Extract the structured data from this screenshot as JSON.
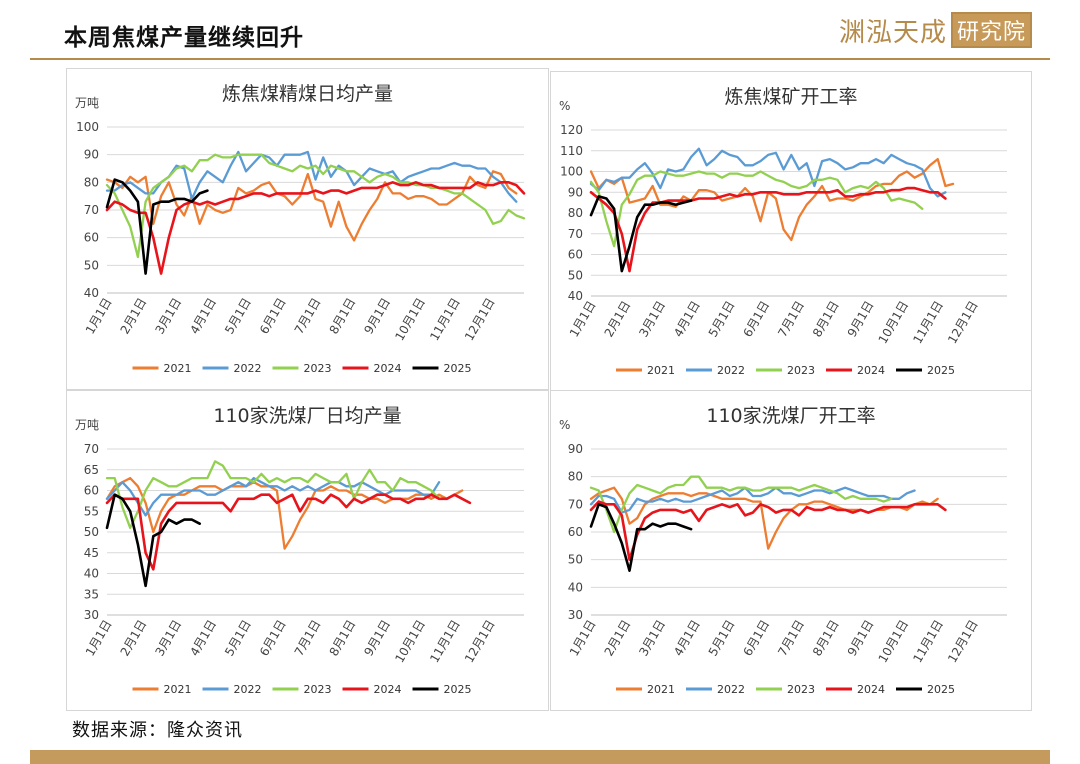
{
  "header": {
    "title": "本周焦煤产量继续回升",
    "logo_text": "渊泓天成",
    "logo_box_text": "研究院"
  },
  "source": "数据来源：隆众资讯",
  "colors": {
    "2021": "#ed7d31",
    "2022": "#5b9bd5",
    "2023": "#92d050",
    "2024": "#e8141b",
    "2025": "#000000",
    "accent": "#b58b4c"
  },
  "chart_data": [
    {
      "type": "line",
      "title": "炼焦煤精煤日均产量",
      "unit": "万吨",
      "ylim": [
        40,
        100
      ],
      "yticks": [
        40,
        50,
        60,
        70,
        80,
        90,
        100
      ],
      "x_tick_labels": [
        "1月1日",
        "2月1日",
        "3月1日",
        "4月1日",
        "5月1日",
        "6月1日",
        "7月1日",
        "8月1日",
        "9月1日",
        "10月1日",
        "11月1日",
        "12月1日"
      ],
      "legend_position": "bottom",
      "series": [
        {
          "name": "2021",
          "values": [
            81,
            80,
            78,
            82,
            80,
            82,
            65,
            75,
            80,
            72,
            68,
            75,
            65,
            72,
            70,
            69,
            70,
            78,
            76,
            77,
            79,
            80,
            76,
            75,
            72,
            75,
            83,
            74,
            73,
            64,
            73,
            64,
            59,
            65,
            70,
            74,
            80,
            76,
            76,
            74,
            75,
            75,
            74,
            72,
            72,
            74,
            76,
            82,
            79,
            78,
            84,
            83,
            78,
            76
          ]
        },
        {
          "name": "2022",
          "values": [
            77,
            77,
            79,
            80,
            78,
            76,
            76,
            80,
            82,
            86,
            85,
            74,
            80,
            84,
            82,
            80,
            86,
            91,
            84,
            87,
            90,
            89,
            86,
            90,
            90,
            90,
            91,
            81,
            89,
            82,
            86,
            84,
            79,
            82,
            85,
            84,
            83,
            84,
            80,
            82,
            83,
            84,
            85,
            85,
            86,
            87,
            86,
            86,
            85,
            85,
            82,
            80,
            76,
            73
          ]
        },
        {
          "name": "2023",
          "values": [
            79,
            76,
            70,
            64,
            53,
            73,
            78,
            80,
            82,
            85,
            86,
            84,
            88,
            88,
            90,
            89,
            89,
            90,
            90,
            90,
            90,
            87,
            86,
            85,
            84,
            86,
            85,
            86,
            83,
            86,
            85,
            84,
            84,
            82,
            80,
            82,
            83,
            82,
            80,
            80,
            79,
            79,
            78,
            78,
            77,
            76,
            76,
            74,
            72,
            70,
            65,
            66,
            70,
            68,
            67
          ]
        },
        {
          "name": "2024",
          "values": [
            70,
            73,
            72,
            70,
            69,
            69,
            60,
            47,
            60,
            70,
            72,
            73,
            72,
            73,
            72,
            73,
            74,
            74,
            75,
            76,
            76,
            75,
            76,
            76,
            76,
            76,
            76,
            77,
            76,
            77,
            77,
            76,
            77,
            78,
            78,
            78,
            79,
            80,
            79,
            79,
            80,
            79,
            79,
            78,
            78,
            78,
            78,
            78,
            80,
            79,
            79,
            80,
            80,
            79,
            76
          ]
        },
        {
          "name": "2025",
          "values": [
            71,
            81,
            80,
            77,
            73,
            47,
            72,
            73,
            73,
            74,
            74,
            73,
            76,
            77
          ]
        }
      ]
    },
    {
      "type": "line",
      "title": "炼焦煤矿开工率",
      "unit": "%",
      "ylim": [
        40,
        120
      ],
      "yticks": [
        40,
        50,
        60,
        70,
        80,
        90,
        100,
        110,
        120
      ],
      "x_tick_labels": [
        "1月1日",
        "2月1日",
        "3月1日",
        "4月1日",
        "5月1日",
        "6月1日",
        "7月1日",
        "8月1日",
        "9月1日",
        "10月1日",
        "11月1日",
        "12月1日"
      ],
      "legend_position": "bottom",
      "series": [
        {
          "name": "2021",
          "values": [
            100,
            92,
            96,
            94,
            97,
            85,
            86,
            87,
            93,
            84,
            84,
            83,
            88,
            86,
            91,
            91,
            90,
            86,
            87,
            88,
            92,
            88,
            76,
            90,
            87,
            72,
            67,
            78,
            84,
            88,
            93,
            86,
            87,
            87,
            86,
            88,
            90,
            93,
            94,
            94,
            98,
            100,
            97,
            99,
            103,
            106,
            93,
            94
          ]
        },
        {
          "name": "2022",
          "values": [
            94,
            91,
            96,
            95,
            97,
            97,
            101,
            104,
            99,
            92,
            101,
            100,
            101,
            107,
            111,
            103,
            106,
            110,
            108,
            107,
            103,
            103,
            105,
            108,
            109,
            101,
            108,
            101,
            104,
            93,
            105,
            106,
            104,
            101,
            102,
            104,
            104,
            106,
            104,
            108,
            106,
            104,
            103,
            101,
            92,
            88,
            90
          ]
        },
        {
          "name": "2023",
          "values": [
            95,
            90,
            76,
            64,
            84,
            89,
            96,
            98,
            98,
            100,
            99,
            98,
            98,
            99,
            100,
            99,
            99,
            97,
            99,
            99,
            98,
            98,
            100,
            98,
            96,
            95,
            93,
            92,
            93,
            96,
            96,
            97,
            96,
            90,
            92,
            93,
            92,
            95,
            92,
            86,
            87,
            86,
            85,
            82
          ]
        },
        {
          "name": "2024",
          "values": [
            90,
            87,
            84,
            80,
            70,
            52,
            72,
            80,
            85,
            85,
            86,
            86,
            86,
            86,
            87,
            87,
            87,
            88,
            89,
            88,
            89,
            89,
            90,
            90,
            90,
            89,
            89,
            89,
            90,
            90,
            90,
            90,
            91,
            88,
            88,
            89,
            89,
            90,
            90,
            91,
            91,
            92,
            92,
            91,
            90,
            90,
            87
          ]
        },
        {
          "name": "2025",
          "values": [
            79,
            88,
            87,
            82,
            52,
            64,
            78,
            84,
            84,
            85,
            85,
            84,
            85,
            86
          ]
        }
      ]
    },
    {
      "type": "line",
      "title": "110家洗煤厂日均产量",
      "unit": "万吨",
      "ylim": [
        30,
        70
      ],
      "yticks": [
        30,
        35,
        40,
        45,
        50,
        55,
        60,
        65,
        70
      ],
      "x_tick_labels": [
        "1月1日",
        "2月1日",
        "3月1日",
        "4月1日",
        "5月1日",
        "6月1日",
        "7月1日",
        "8月1日",
        "9月1日",
        "10月1日",
        "11月1日",
        "12月1日"
      ],
      "legend_position": "bottom",
      "series": [
        {
          "name": "2021",
          "values": [
            58,
            61,
            62,
            63,
            61,
            57,
            50,
            55,
            58,
            59,
            59,
            60,
            61,
            61,
            61,
            60,
            61,
            61,
            61,
            62,
            61,
            61,
            60,
            46,
            49,
            53,
            56,
            60,
            60,
            61,
            60,
            60,
            59,
            59,
            58,
            58,
            57,
            58,
            58,
            58,
            59,
            59,
            58,
            59,
            58,
            59,
            60
          ]
        },
        {
          "name": "2022",
          "values": [
            58,
            60,
            62,
            60,
            57,
            54,
            57,
            59,
            59,
            59,
            60,
            60,
            60,
            59,
            59,
            60,
            61,
            62,
            61,
            63,
            62,
            61,
            61,
            60,
            61,
            60,
            61,
            60,
            61,
            62,
            62,
            61,
            61,
            62,
            61,
            60,
            59,
            60,
            60,
            60,
            60,
            59,
            59,
            62
          ]
        },
        {
          "name": "2023",
          "values": [
            63,
            63,
            56,
            51,
            55,
            60,
            63,
            62,
            61,
            61,
            62,
            63,
            63,
            63,
            67,
            66,
            63,
            63,
            63,
            62,
            64,
            62,
            63,
            62,
            63,
            63,
            62,
            64,
            63,
            62,
            62,
            64,
            58,
            62,
            65,
            62,
            62,
            60,
            63,
            62,
            62,
            61,
            60,
            58
          ]
        },
        {
          "name": "2024",
          "values": [
            57,
            59,
            58,
            58,
            58,
            45,
            41,
            52,
            55,
            57,
            57,
            57,
            57,
            57,
            57,
            57,
            55,
            58,
            58,
            58,
            59,
            59,
            57,
            58,
            59,
            55,
            58,
            58,
            57,
            59,
            58,
            56,
            58,
            57,
            58,
            59,
            59,
            58,
            58,
            57,
            58,
            58,
            59,
            58,
            58,
            59,
            58,
            57
          ]
        },
        {
          "name": "2025",
          "values": [
            51,
            59,
            58,
            55,
            47,
            37,
            49,
            50,
            53,
            52,
            53,
            53,
            52
          ]
        }
      ]
    },
    {
      "type": "line",
      "title": "110家洗煤厂开工率",
      "unit": "%",
      "ylim": [
        30,
        90
      ],
      "yticks": [
        30,
        40,
        50,
        60,
        70,
        80,
        90
      ],
      "x_tick_labels": [
        "1月1日",
        "2月1日",
        "3月1日",
        "4月1日",
        "5月1日",
        "6月1日",
        "7月1日",
        "8月1日",
        "9月1日",
        "10月1日",
        "11月1日",
        "12月1日"
      ],
      "legend_position": "bottom",
      "series": [
        {
          "name": "2021",
          "values": [
            72,
            74,
            75,
            76,
            72,
            63,
            65,
            70,
            72,
            73,
            74,
            74,
            74,
            73,
            74,
            74,
            73,
            72,
            72,
            72,
            72,
            71,
            71,
            54,
            60,
            65,
            68,
            70,
            70,
            71,
            71,
            70,
            69,
            68,
            68,
            68,
            67,
            68,
            68,
            69,
            69,
            68,
            70,
            71,
            70,
            72
          ]
        },
        {
          "name": "2022",
          "values": [
            70,
            73,
            73,
            72,
            67,
            68,
            72,
            71,
            71,
            72,
            71,
            72,
            71,
            71,
            72,
            73,
            74,
            75,
            73,
            74,
            76,
            73,
            73,
            74,
            76,
            74,
            74,
            73,
            74,
            75,
            75,
            74,
            75,
            76,
            75,
            74,
            73,
            73,
            73,
            72,
            72,
            74,
            75
          ]
        },
        {
          "name": "2023",
          "values": [
            76,
            75,
            68,
            60,
            68,
            74,
            77,
            76,
            75,
            74,
            76,
            77,
            77,
            80,
            80,
            76,
            76,
            76,
            75,
            76,
            76,
            75,
            75,
            76,
            76,
            76,
            76,
            75,
            76,
            77,
            76,
            75,
            74,
            72,
            73,
            72,
            72,
            72,
            71,
            72
          ]
        },
        {
          "name": "2024",
          "values": [
            68,
            71,
            70,
            70,
            66,
            50,
            59,
            65,
            67,
            68,
            68,
            68,
            67,
            68,
            64,
            68,
            69,
            70,
            69,
            70,
            66,
            67,
            70,
            69,
            67,
            68,
            68,
            66,
            69,
            68,
            68,
            69,
            68,
            68,
            67,
            68,
            67,
            68,
            69,
            69,
            69,
            69,
            70,
            70,
            70,
            70,
            68
          ]
        },
        {
          "name": "2025",
          "values": [
            62,
            70,
            69,
            63,
            56,
            46,
            61,
            61,
            63,
            62,
            63,
            63,
            62,
            61
          ]
        }
      ]
    }
  ]
}
